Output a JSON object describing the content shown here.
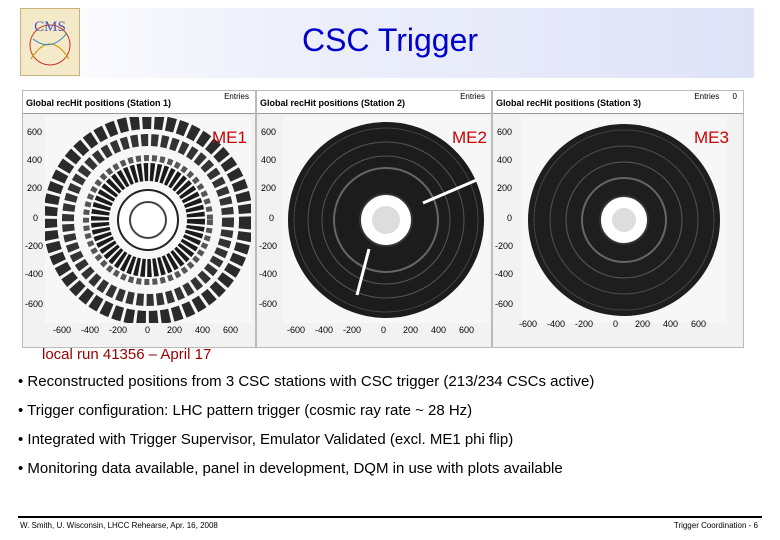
{
  "slide": {
    "title": "CSC Trigger",
    "logo_text": "CMS",
    "run_label": "local run 41356 – April 17",
    "bullets": [
      "• Reconstructed positions from 3 CSC stations with CSC trigger (213/234 CSCs active)",
      "• Trigger configuration:  LHC pattern trigger (cosmic ray rate ~ 28 Hz)",
      "• Integrated with Trigger Supervisor, Emulator Validated (excl. ME1 phi flip)",
      "• Monitoring data available, panel in development, DQM in use with plots available"
    ],
    "footer_left": "W. Smith, U. Wisconsin,  LHCC Rehearse, Apr. 16, 2008",
    "footer_right": "Trigger Coordination -  6"
  },
  "panels": [
    {
      "heading": "Global recHit positions (Station 1)",
      "entries_label": "Entries",
      "entries_value": "",
      "station": "ME1",
      "y_ticks": [
        "600",
        "400",
        "200",
        "0",
        "-200",
        "-400",
        "-600"
      ],
      "x_ticks": [
        "-600",
        "-400",
        "-200",
        "0",
        "200",
        "400",
        "600"
      ]
    },
    {
      "heading": "Global recHit positions (Station 2)",
      "entries_label": "Entries",
      "entries_value": "",
      "station": "ME2",
      "y_ticks": [
        "600",
        "400",
        "200",
        "0",
        "-200",
        "-400",
        "-600"
      ],
      "x_ticks": [
        "-600",
        "-400",
        "-200",
        "0",
        "200",
        "400",
        "600"
      ]
    },
    {
      "heading": "Global recHit positions (Station 3)",
      "entries_label": "Entries",
      "entries_value": "0",
      "station": "ME3",
      "y_ticks": [
        "600",
        "400",
        "200",
        "0",
        "-200",
        "-400",
        "-600"
      ],
      "x_ticks": [
        "-600",
        "-400",
        "-200",
        "0",
        "200",
        "400",
        "600"
      ]
    }
  ],
  "colors": {
    "title": "#0000cc",
    "station_label": "#cc0000",
    "run_label": "#990000"
  }
}
